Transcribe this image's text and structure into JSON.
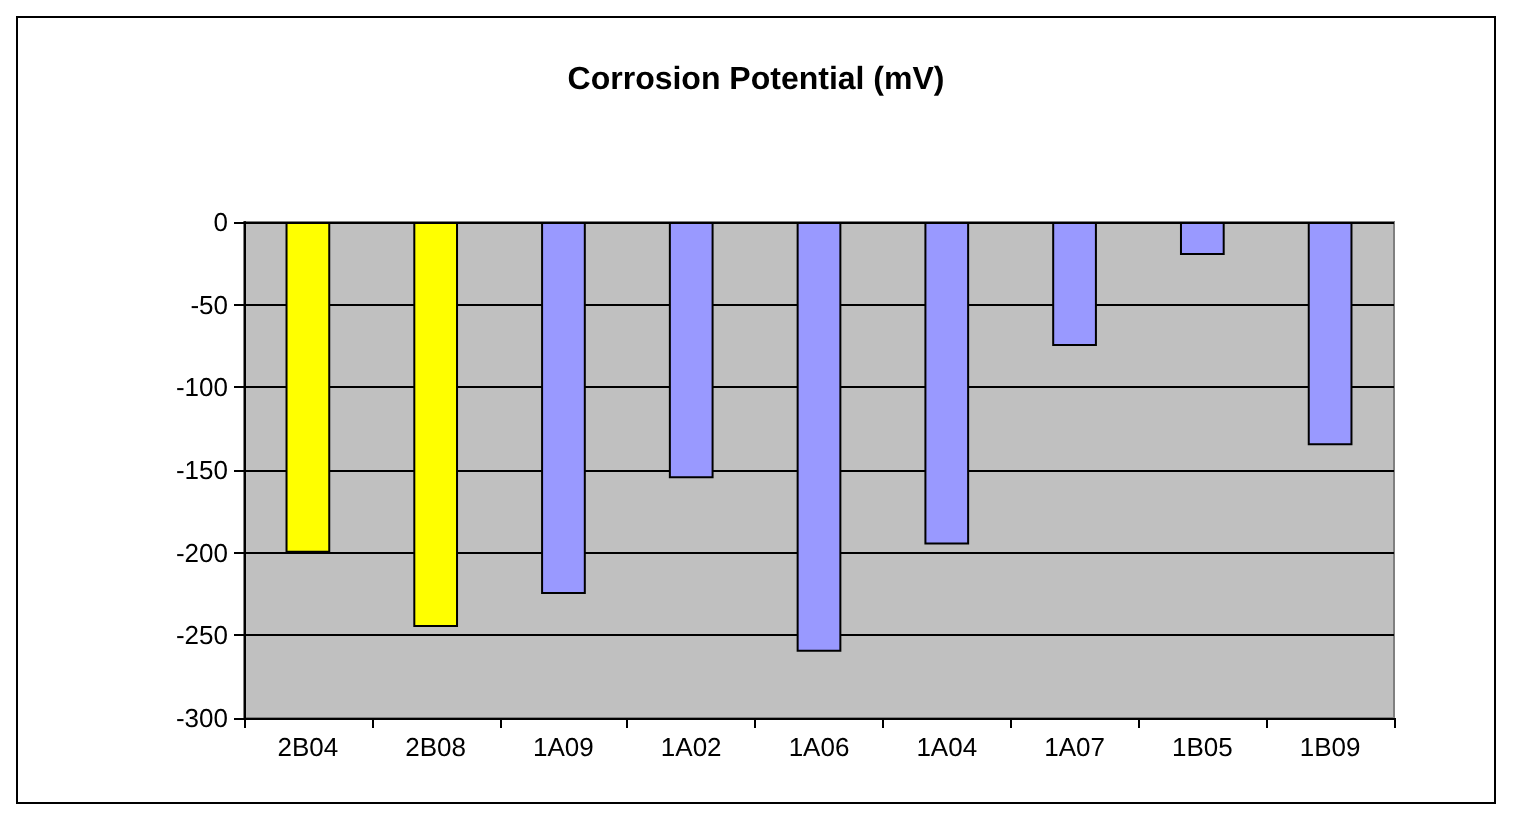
{
  "chart_data": {
    "type": "bar",
    "title": "Corrosion Potential (mV)",
    "categories": [
      "2B04",
      "2B08",
      "1A09",
      "1A02",
      "1A06",
      "1A04",
      "1A07",
      "1B05",
      "1B09"
    ],
    "values": [
      -200,
      -245,
      -225,
      -155,
      -260,
      -195,
      -75,
      -20,
      -135
    ],
    "colors": [
      "#ffff00",
      "#ffff00",
      "#9999ff",
      "#9999ff",
      "#9999ff",
      "#9999ff",
      "#9999ff",
      "#9999ff",
      "#9999ff"
    ],
    "ylim": [
      -300,
      0
    ],
    "yticks": [
      -300,
      -250,
      -200,
      -150,
      -100,
      -50,
      0
    ],
    "grid": true
  }
}
